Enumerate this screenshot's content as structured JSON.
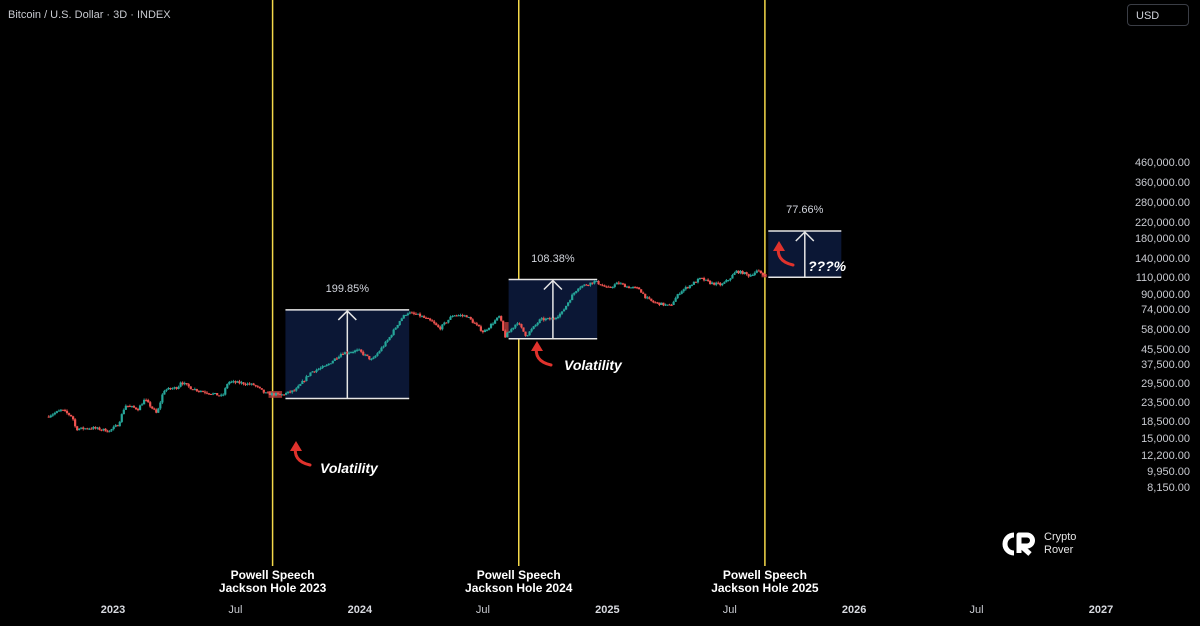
{
  "header": {
    "title": "Bitcoin / U.S. Dollar · 3D · INDEX",
    "currency": "USD"
  },
  "chart_data": {
    "type": "candlestick",
    "y_scale": "log",
    "ylim": [
      7000,
      520000
    ],
    "y_ticks": [
      "460,000.00",
      "360,000.00",
      "280,000.00",
      "220,000.00",
      "180,000.00",
      "140,000.00",
      "110,000.00",
      "90,000.00",
      "74,000.00",
      "58,000.00",
      "45,500.00",
      "37,500.00",
      "29,500.00",
      "23,500.00",
      "18,500.00",
      "15,000.00",
      "12,200.00",
      "9,950.00",
      "8,150.00"
    ],
    "y_tick_values": [
      460000,
      360000,
      280000,
      220000,
      180000,
      140000,
      110000,
      90000,
      74000,
      58000,
      45500,
      37500,
      29500,
      23500,
      18500,
      15000,
      12200,
      9950,
      8150
    ],
    "x_ticks": [
      {
        "label": "2023",
        "date": "2023-01-01",
        "year": true
      },
      {
        "label": "Jul",
        "date": "2023-07-01",
        "year": false
      },
      {
        "label": "2024",
        "date": "2024-01-01",
        "year": true
      },
      {
        "label": "Jul",
        "date": "2024-07-01",
        "year": false
      },
      {
        "label": "2025",
        "date": "2025-01-01",
        "year": true
      },
      {
        "label": "Jul",
        "date": "2025-07-01",
        "year": false
      },
      {
        "label": "2026",
        "date": "2026-01-01",
        "year": true
      },
      {
        "label": "Jul",
        "date": "2026-07-01",
        "year": false
      },
      {
        "label": "2027",
        "date": "2027-01-01",
        "year": true
      }
    ],
    "price_path": [
      [
        "2022-09-28",
        19800
      ],
      [
        "2022-10-20",
        21500
      ],
      [
        "2022-11-05",
        19800
      ],
      [
        "2022-11-10",
        17000
      ],
      [
        "2022-12-05",
        17200
      ],
      [
        "2022-12-30",
        16600
      ],
      [
        "2023-01-12",
        18000
      ],
      [
        "2023-01-22",
        22800
      ],
      [
        "2023-02-10",
        21800
      ],
      [
        "2023-02-20",
        24500
      ],
      [
        "2023-03-10",
        20500
      ],
      [
        "2023-03-20",
        27500
      ],
      [
        "2023-04-10",
        28500
      ],
      [
        "2023-04-14",
        30500
      ],
      [
        "2023-05-01",
        28000
      ],
      [
        "2023-06-15",
        25500
      ],
      [
        "2023-06-23",
        30500
      ],
      [
        "2023-07-15",
        30000
      ],
      [
        "2023-08-01",
        29300
      ],
      [
        "2023-08-17",
        26400
      ],
      [
        "2023-09-10",
        25900
      ],
      [
        "2023-10-01",
        27500
      ],
      [
        "2023-10-24",
        34500
      ],
      [
        "2023-11-15",
        37000
      ],
      [
        "2023-12-08",
        43500
      ],
      [
        "2024-01-02",
        45000
      ],
      [
        "2024-01-22",
        39800
      ],
      [
        "2024-02-15",
        51500
      ],
      [
        "2024-03-04",
        66000
      ],
      [
        "2024-03-14",
        72000
      ],
      [
        "2024-04-01",
        69500
      ],
      [
        "2024-04-20",
        64000
      ],
      [
        "2024-05-01",
        59000
      ],
      [
        "2024-05-21",
        70000
      ],
      [
        "2024-06-10",
        69000
      ],
      [
        "2024-07-05",
        56500
      ],
      [
        "2024-07-29",
        69000
      ],
      [
        "2024-08-05",
        53000
      ],
      [
        "2024-08-24",
        64000
      ],
      [
        "2024-09-06",
        54000
      ],
      [
        "2024-09-27",
        66000
      ],
      [
        "2024-10-15",
        66500
      ],
      [
        "2024-10-29",
        72000
      ],
      [
        "2024-11-12",
        88000
      ],
      [
        "2024-11-22",
        98500
      ],
      [
        "2024-12-17",
        106000
      ],
      [
        "2025-01-05",
        97000
      ],
      [
        "2025-01-20",
        104000
      ],
      [
        "2025-02-03",
        99000
      ],
      [
        "2025-02-20",
        96500
      ],
      [
        "2025-03-03",
        86000
      ],
      [
        "2025-03-12",
        82000
      ],
      [
        "2025-04-07",
        78000
      ],
      [
        "2025-04-22",
        93500
      ],
      [
        "2025-05-10",
        103000
      ],
      [
        "2025-05-22",
        110000
      ],
      [
        "2025-06-05",
        104000
      ],
      [
        "2025-06-22",
        101500
      ],
      [
        "2025-07-03",
        109000
      ],
      [
        "2025-07-14",
        120000
      ],
      [
        "2025-07-25",
        117500
      ],
      [
        "2025-08-02",
        113500
      ],
      [
        "2025-08-14",
        121000
      ],
      [
        "2025-08-22",
        115500
      ]
    ],
    "events": [
      {
        "date": "2023-08-25",
        "label_line1": "Powell Speech",
        "label_line2": "Jackson Hole 2023"
      },
      {
        "date": "2024-08-23",
        "label_line1": "Powell Speech",
        "label_line2": "Jackson Hole 2024"
      },
      {
        "date": "2025-08-22",
        "label_line1": "Powell Speech",
        "label_line2": "Jackson Hole 2025"
      }
    ],
    "volatility_zones": [
      {
        "start": "2023-08-19",
        "end": "2023-09-08",
        "low": 25000,
        "high": 27200
      },
      {
        "start": "2024-08-02",
        "end": "2024-08-08",
        "low": 53000,
        "high": 64000
      },
      {
        "start": "2025-08-17",
        "end": "2025-08-25",
        "low": 111500,
        "high": 116000
      }
    ],
    "move_boxes": [
      {
        "start": "2023-09-13",
        "end": "2024-03-14",
        "low": 24800,
        "high": 74400,
        "pct": "199.85%"
      },
      {
        "start": "2024-08-08",
        "end": "2024-12-17",
        "low": 52000,
        "high": 108500,
        "pct": "108.38%"
      },
      {
        "start": "2025-08-27",
        "end": "2025-12-13",
        "low": 111500,
        "high": 198000,
        "pct": "77.66%"
      }
    ],
    "annotations": [
      {
        "text": "Volatility",
        "note_left": 320,
        "note_top": 460,
        "ax": 296,
        "ay": 445
      },
      {
        "text": "Volatility",
        "note_left": 564,
        "note_top": 357,
        "ax": 537,
        "ay": 345
      },
      {
        "text": "???%",
        "note_left": 808,
        "note_top": 258,
        "ax": 779,
        "ay": 245
      }
    ],
    "colors": {
      "up": "#26a69a",
      "down": "#ef5350",
      "event_line": "#f5d94a",
      "box_fill": "#0b1735",
      "box_stroke": "#e6e6e6",
      "zone": "#b23a3a",
      "arrow": "#e0322c"
    }
  },
  "logo": {
    "line1": "Crypto",
    "line2": "Rover"
  }
}
